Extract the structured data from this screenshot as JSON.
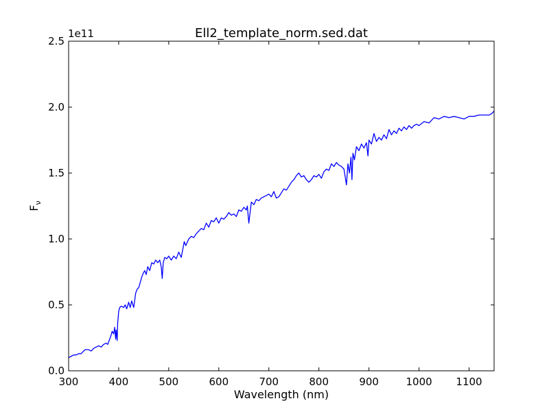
{
  "chart_data": {
    "type": "line",
    "title": "Ell2_template_norm.sed.dat",
    "xlabel": "Wavelength (nm)",
    "ylabel": "F",
    "ylabel_subscript": "ν",
    "offset_label": "1e11",
    "xlim": [
      300,
      1150
    ],
    "ylim": [
      0.0,
      2.5
    ],
    "y_scale_note": "1e11",
    "x_ticks": [
      "300",
      "400",
      "500",
      "600",
      "700",
      "800",
      "900",
      "1000",
      "1100"
    ],
    "y_ticks": [
      "0.0",
      "0.5",
      "1.0",
      "1.5",
      "2.0",
      "2.5"
    ],
    "grid": false,
    "line_color": "#0000ff",
    "series": [
      {
        "x": [
          300,
          305,
          310,
          315,
          320,
          325,
          330,
          333,
          336,
          340,
          345,
          350,
          355,
          360,
          365,
          370,
          375,
          378,
          381,
          384,
          387,
          390,
          392,
          394,
          395,
          397,
          398,
          400,
          402,
          405,
          410,
          413,
          416,
          420,
          423,
          426,
          430,
          434,
          437,
          440,
          443,
          446,
          449,
          452,
          455,
          458,
          462,
          466,
          470,
          474,
          478,
          482,
          485,
          487,
          489,
          492,
          496,
          500,
          505,
          510,
          515,
          520,
          525,
          528,
          531,
          534,
          540,
          545,
          550,
          555,
          560,
          565,
          570,
          575,
          580,
          585,
          590,
          595,
          600,
          605,
          610,
          615,
          620,
          625,
          630,
          635,
          640,
          645,
          650,
          655,
          657,
          660,
          665,
          670,
          675,
          680,
          685,
          690,
          695,
          700,
          705,
          710,
          715,
          720,
          725,
          730,
          735,
          740,
          745,
          750,
          755,
          760,
          765,
          770,
          775,
          780,
          785,
          790,
          795,
          800,
          805,
          810,
          815,
          820,
          825,
          830,
          835,
          840,
          845,
          850,
          853,
          855,
          858,
          861,
          864,
          866,
          868,
          871,
          875,
          880,
          885,
          890,
          895,
          898,
          900,
          905,
          910,
          915,
          920,
          925,
          930,
          935,
          940,
          945,
          950,
          955,
          960,
          965,
          970,
          975,
          980,
          985,
          990,
          995,
          1000,
          1010,
          1020,
          1030,
          1040,
          1050,
          1060,
          1070,
          1080,
          1090,
          1100,
          1110,
          1120,
          1130,
          1140,
          1145,
          1150
        ],
        "values": [
          0.1,
          0.11,
          0.12,
          0.12,
          0.13,
          0.13,
          0.15,
          0.16,
          0.16,
          0.16,
          0.15,
          0.17,
          0.18,
          0.19,
          0.18,
          0.2,
          0.21,
          0.2,
          0.23,
          0.26,
          0.3,
          0.28,
          0.33,
          0.24,
          0.31,
          0.23,
          0.36,
          0.45,
          0.48,
          0.49,
          0.48,
          0.5,
          0.47,
          0.52,
          0.48,
          0.53,
          0.48,
          0.59,
          0.62,
          0.63,
          0.67,
          0.71,
          0.74,
          0.76,
          0.73,
          0.79,
          0.76,
          0.82,
          0.81,
          0.84,
          0.82,
          0.84,
          0.79,
          0.7,
          0.82,
          0.86,
          0.85,
          0.87,
          0.84,
          0.87,
          0.85,
          0.9,
          0.86,
          0.92,
          0.98,
          0.95,
          1.0,
          1.02,
          1.01,
          1.04,
          1.06,
          1.08,
          1.07,
          1.12,
          1.09,
          1.14,
          1.13,
          1.16,
          1.12,
          1.16,
          1.15,
          1.17,
          1.2,
          1.18,
          1.19,
          1.17,
          1.22,
          1.21,
          1.24,
          1.22,
          1.25,
          1.12,
          1.28,
          1.26,
          1.3,
          1.29,
          1.31,
          1.32,
          1.33,
          1.34,
          1.32,
          1.36,
          1.31,
          1.32,
          1.35,
          1.38,
          1.37,
          1.4,
          1.43,
          1.45,
          1.48,
          1.5,
          1.47,
          1.48,
          1.45,
          1.43,
          1.45,
          1.48,
          1.47,
          1.49,
          1.46,
          1.51,
          1.53,
          1.52,
          1.57,
          1.55,
          1.58,
          1.56,
          1.55,
          1.53,
          1.46,
          1.41,
          1.57,
          1.5,
          1.62,
          1.45,
          1.65,
          1.6,
          1.7,
          1.67,
          1.72,
          1.69,
          1.73,
          1.63,
          1.75,
          1.72,
          1.8,
          1.74,
          1.77,
          1.75,
          1.79,
          1.76,
          1.83,
          1.79,
          1.82,
          1.8,
          1.84,
          1.82,
          1.85,
          1.83,
          1.86,
          1.84,
          1.86,
          1.87,
          1.86,
          1.89,
          1.88,
          1.92,
          1.91,
          1.93,
          1.92,
          1.93,
          1.92,
          1.91,
          1.93,
          1.93,
          1.94,
          1.94,
          1.94,
          1.95,
          1.97
        ]
      }
    ]
  }
}
